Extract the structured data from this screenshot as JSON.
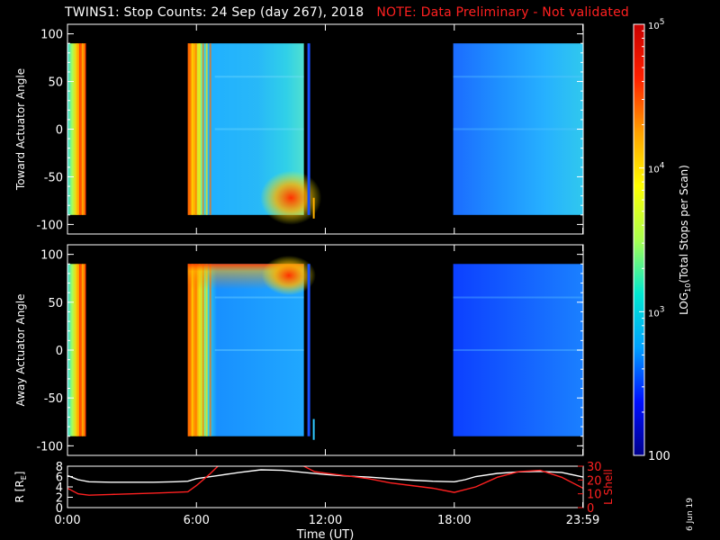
{
  "title": {
    "main": "TWINS1: Stop Counts: 24 Sep (day 267), 2018",
    "note": "NOTE: Data Preliminary - Not validated",
    "note_color": "#ff2020"
  },
  "date_stamp": "6 Jun 19",
  "chart_data": [
    {
      "type": "heatmap",
      "panel": "toward",
      "ylabel": "Toward Actuator Angle",
      "ylim": [
        -110,
        110
      ],
      "yticks": [
        -100,
        -50,
        0,
        50,
        100
      ],
      "x_unit": "hours UT",
      "xlim": [
        0,
        24
      ],
      "data_blocks_hours": [
        [
          -0.1,
          0.85
        ],
        [
          5.6,
          11.0
        ],
        [
          17.95,
          24.0
        ]
      ],
      "angle_range": [
        -90,
        90
      ]
    },
    {
      "type": "heatmap",
      "panel": "away",
      "ylabel": "Away Actuator Angle",
      "ylim": [
        -110,
        110
      ],
      "yticks": [
        -100,
        -50,
        0,
        50,
        100
      ],
      "x_unit": "hours UT",
      "xlim": [
        0,
        24
      ],
      "data_blocks_hours": [
        [
          -0.1,
          0.85
        ],
        [
          5.6,
          11.0
        ],
        [
          17.95,
          24.0
        ]
      ],
      "angle_range": [
        -90,
        90
      ]
    },
    {
      "type": "line",
      "panel": "orbit",
      "left_axis": {
        "label": "R [R",
        "subscript": "E",
        "label_end": "]",
        "ylim": [
          0,
          8
        ],
        "ticks": [
          0,
          2,
          4,
          6,
          8
        ]
      },
      "right_axis": {
        "label": "L Shell",
        "ylim": [
          0,
          30
        ],
        "ticks": [
          0,
          10,
          20,
          30
        ],
        "color": "#ff2020"
      },
      "xlim": [
        0,
        24
      ],
      "xticks": [
        {
          "value": 0,
          "label": "0:00"
        },
        {
          "value": 6,
          "label": "6:00"
        },
        {
          "value": 12,
          "label": "12:00"
        },
        {
          "value": 18,
          "label": "18:00"
        },
        {
          "value": 23.98,
          "label": "23:59"
        }
      ],
      "xlabel": "Time (UT)",
      "series": [
        {
          "axis": "left",
          "color": "#ffffff",
          "x": [
            0,
            0.5,
            1,
            2,
            3,
            4,
            5,
            5.6,
            6,
            7,
            8,
            9,
            10,
            11,
            12,
            13,
            14,
            15,
            16,
            17,
            18,
            18.5,
            19,
            20,
            21,
            22,
            23,
            24
          ],
          "y": [
            6.2,
            5.4,
            5.0,
            4.9,
            4.9,
            4.9,
            5.0,
            5.1,
            5.6,
            6.2,
            6.8,
            7.3,
            7.2,
            6.8,
            6.4,
            6.1,
            5.9,
            5.6,
            5.3,
            5.1,
            5.0,
            5.4,
            6.0,
            6.6,
            6.9,
            7.0,
            6.8,
            5.9
          ]
        },
        {
          "axis": "right",
          "color": "#ff2020",
          "x": [
            0,
            0.5,
            1,
            2,
            3,
            4,
            5,
            5.6,
            6,
            6.6,
            7.0,
            7.2,
            10.8,
            11.0,
            11.5,
            12,
            13,
            14,
            15,
            16,
            17,
            18,
            19,
            20,
            21,
            22,
            23,
            24
          ],
          "y": [
            14,
            10,
            9,
            9.5,
            10,
            10.5,
            11,
            11.5,
            16,
            24,
            30,
            32,
            32,
            30,
            26,
            25,
            23,
            21,
            18,
            16,
            14,
            11,
            15,
            22,
            26,
            27,
            22,
            14
          ]
        }
      ]
    },
    {
      "type": "colorbar",
      "label": "LOG",
      "label_sub": "10",
      "label_rest": "(Total Stops per Scan)",
      "scale": "log",
      "range": [
        100,
        100000
      ],
      "ticks": [
        {
          "value": 100,
          "label": "100",
          "kind": "plain"
        },
        {
          "value": 1000,
          "label": "10",
          "exp": "3",
          "kind": "pow"
        },
        {
          "value": 10000,
          "label": "10",
          "exp": "4",
          "kind": "pow"
        },
        {
          "value": 100000,
          "label": "10",
          "exp": "5",
          "kind": "pow"
        }
      ],
      "colors": [
        "#00008c",
        "#0010ff",
        "#00a0ff",
        "#00e8d0",
        "#a8ff50",
        "#ffff00",
        "#ffa000",
        "#ff2000",
        "#c80000"
      ]
    }
  ]
}
